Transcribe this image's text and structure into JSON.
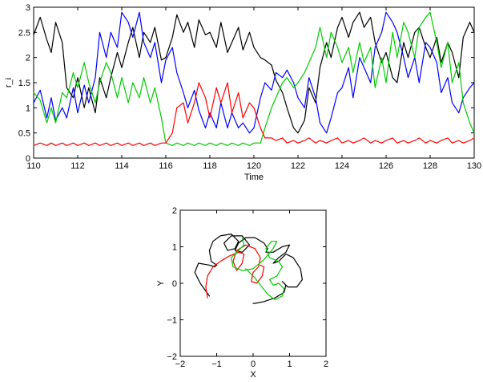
{
  "chart_data": [
    {
      "type": "line",
      "title": "",
      "xlabel": "Time",
      "ylabel": "r_i",
      "xlim": [
        110,
        130
      ],
      "ylim": [
        0,
        3
      ],
      "xticks": [
        "110",
        "112",
        "114",
        "116",
        "118",
        "120",
        "122",
        "124",
        "126",
        "128",
        "130"
      ],
      "yticks": [
        "0",
        "0.5",
        "1",
        "1.5",
        "2",
        "2.5",
        "3"
      ],
      "grid": false,
      "legend": "none",
      "series": [
        {
          "color": "#000000",
          "x": [
            110,
            110.3,
            110.6,
            110.8,
            111,
            111.3,
            111.5,
            111.8,
            112,
            112.3,
            112.5,
            112.8,
            113,
            113.3,
            113.5,
            113.8,
            114,
            114.3,
            114.5,
            114.8,
            115,
            115.3,
            115.5,
            115.8,
            116,
            116.3,
            116.5,
            116.8,
            117,
            117.3,
            117.5,
            117.8,
            118,
            118.3,
            118.5,
            118.8,
            119,
            119.3,
            119.5,
            119.8,
            120,
            120.3,
            120.5,
            120.8,
            121,
            121.3,
            121.5,
            121.8,
            122,
            122.3,
            122.5,
            122.8,
            123,
            123.3,
            123.5,
            123.8,
            124,
            124.3,
            124.5,
            124.8,
            125,
            125.3,
            125.5,
            125.8,
            126,
            126.3,
            126.5,
            126.8,
            127,
            127.3,
            127.5,
            127.8,
            128,
            128.3,
            128.5,
            128.8,
            129,
            129.3,
            129.5,
            129.8,
            130
          ],
          "y": [
            2.45,
            2.8,
            2.35,
            2.1,
            2.7,
            2.3,
            1.4,
            1.2,
            1.6,
            1.0,
            1.4,
            0.9,
            1.6,
            1.2,
            1.6,
            2.1,
            1.8,
            2.3,
            2.6,
            2.0,
            2.5,
            2.3,
            2.6,
            1.95,
            2.0,
            2.4,
            2.85,
            2.5,
            2.7,
            2.2,
            2.75,
            2.45,
            2.5,
            2.2,
            2.7,
            2.1,
            2.3,
            2.6,
            2.15,
            2.5,
            2.2,
            2.0,
            1.95,
            1.85,
            1.55,
            1.3,
            1.0,
            0.6,
            0.5,
            0.75,
            1.4,
            1.1,
            1.8,
            2.3,
            2.0,
            2.6,
            2.8,
            2.4,
            2.7,
            2.9,
            2.6,
            2.8,
            2.3,
            1.9,
            2.1,
            1.6,
            1.5,
            2.3,
            2.0,
            2.5,
            2.6,
            2.2,
            2.0,
            2.4,
            1.9,
            2.3,
            2.1,
            1.6,
            2.4,
            2.7,
            2.5
          ]
        },
        {
          "color": "#0000ff",
          "x": [
            110,
            110.3,
            110.6,
            110.8,
            111,
            111.3,
            111.5,
            111.8,
            112,
            112.3,
            112.5,
            112.8,
            113,
            113.3,
            113.5,
            113.8,
            114,
            114.3,
            114.5,
            114.8,
            115,
            115.3,
            115.5,
            115.8,
            116,
            116.3,
            116.5,
            116.8,
            117,
            117.3,
            117.5,
            117.8,
            118,
            118.3,
            118.5,
            118.8,
            119,
            119.3,
            119.5,
            119.8,
            120,
            120.3,
            120.5,
            120.8,
            121,
            121.3,
            121.5,
            121.8,
            122,
            122.3,
            122.5,
            122.8,
            123,
            123.3,
            123.5,
            123.8,
            124,
            124.3,
            124.5,
            124.8,
            125,
            125.3,
            125.5,
            125.8,
            126,
            126.3,
            126.5,
            126.8,
            127,
            127.3,
            127.5,
            127.8,
            128,
            128.3,
            128.5,
            128.8,
            129,
            129.3,
            129.5,
            129.8,
            130
          ],
          "y": [
            1.1,
            1.35,
            0.8,
            1.2,
            0.75,
            1.0,
            0.8,
            1.4,
            0.9,
            1.45,
            1.1,
            1.6,
            2.5,
            2.0,
            2.5,
            2.2,
            2.9,
            2.7,
            2.4,
            2.9,
            2.3,
            2.0,
            2.3,
            1.5,
            1.95,
            2.2,
            1.7,
            1.3,
            1.0,
            1.35,
            0.95,
            0.6,
            0.9,
            0.6,
            1.1,
            0.6,
            0.9,
            0.6,
            0.7,
            0.5,
            0.6,
            1.2,
            1.5,
            1.35,
            1.7,
            1.6,
            1.75,
            1.5,
            1.2,
            1.0,
            1.6,
            1.2,
            0.7,
            0.5,
            0.8,
            1.3,
            1.4,
            1.8,
            1.2,
            2.0,
            1.8,
            1.5,
            2.2,
            2.5,
            2.9,
            2.7,
            2.5,
            2.0,
            1.6,
            2.0,
            1.5,
            2.3,
            2.2,
            1.9,
            1.3,
            1.6,
            1.1,
            0.9,
            1.2,
            1.4,
            1.5
          ]
        },
        {
          "color": "#00cc00",
          "x": [
            110,
            110.3,
            110.6,
            110.8,
            111,
            111.3,
            111.5,
            111.8,
            112,
            112.3,
            112.5,
            112.8,
            113,
            113.3,
            113.5,
            113.8,
            114,
            114.3,
            114.5,
            114.8,
            115,
            115.3,
            115.5,
            115.8,
            116,
            116.3,
            116.5,
            116.8,
            117,
            117.3,
            117.5,
            117.8,
            118,
            118.3,
            118.5,
            118.8,
            119,
            119.3,
            119.5,
            119.8,
            120,
            120.3,
            120.5,
            120.8,
            121,
            121.3,
            121.5,
            121.8,
            122,
            122.3,
            122.5,
            122.8,
            123,
            123.3,
            123.5,
            123.8,
            124,
            124.3,
            124.5,
            124.8,
            125,
            125.3,
            125.5,
            125.8,
            126,
            126.3,
            126.5,
            126.8,
            127,
            127.3,
            127.5,
            127.8,
            128,
            128.3,
            128.5,
            128.8,
            129,
            129.3,
            129.5,
            129.8,
            130
          ],
          "y": [
            1.3,
            1.15,
            0.7,
            1.0,
            0.7,
            1.3,
            1.2,
            1.7,
            1.4,
            1.9,
            1.5,
            1.1,
            1.5,
            1.9,
            1.7,
            1.2,
            1.6,
            1.1,
            1.5,
            1.2,
            1.6,
            1.1,
            1.4,
            0.8,
            0.3,
            0.25,
            0.3,
            0.25,
            0.3,
            0.25,
            0.3,
            0.25,
            0.3,
            0.25,
            0.3,
            0.25,
            0.3,
            0.25,
            0.3,
            0.25,
            0.3,
            0.3,
            0.6,
            1.0,
            1.2,
            1.5,
            1.6,
            1.4,
            1.5,
            1.7,
            1.9,
            2.2,
            2.6,
            2.0,
            2.5,
            2.2,
            1.9,
            2.2,
            1.7,
            2.3,
            1.9,
            2.2,
            1.4,
            2.0,
            1.5,
            2.5,
            2.0,
            2.7,
            2.5,
            2.0,
            2.6,
            2.8,
            2.9,
            2.3,
            1.8,
            2.3,
            1.5,
            1.9,
            1.1,
            0.7,
            0.5
          ]
        },
        {
          "color": "#ff0000",
          "x": [
            110,
            110.3,
            110.6,
            110.8,
            111,
            111.3,
            111.5,
            111.8,
            112,
            112.3,
            112.5,
            112.8,
            113,
            113.3,
            113.5,
            113.8,
            114,
            114.3,
            114.5,
            114.8,
            115,
            115.3,
            115.5,
            115.8,
            116,
            116.3,
            116.5,
            116.8,
            117,
            117.3,
            117.5,
            117.8,
            118,
            118.3,
            118.5,
            118.8,
            119,
            119.3,
            119.5,
            119.8,
            120,
            120.3,
            120.5,
            120.8,
            121,
            121.3,
            121.5,
            121.8,
            122,
            122.3,
            122.5,
            122.8,
            123,
            123.3,
            123.5,
            123.8,
            124,
            124.3,
            124.5,
            124.8,
            125,
            125.3,
            125.5,
            125.8,
            126,
            126.3,
            126.5,
            126.8,
            127,
            127.3,
            127.5,
            127.8,
            128,
            128.3,
            128.5,
            128.8,
            129,
            129.3,
            129.5,
            129.8,
            130
          ],
          "y": [
            0.25,
            0.3,
            0.25,
            0.3,
            0.25,
            0.3,
            0.25,
            0.3,
            0.25,
            0.3,
            0.25,
            0.3,
            0.25,
            0.3,
            0.25,
            0.3,
            0.25,
            0.3,
            0.25,
            0.3,
            0.25,
            0.3,
            0.25,
            0.3,
            0.3,
            0.5,
            1.0,
            1.1,
            0.7,
            1.1,
            1.5,
            1.2,
            0.8,
            1.4,
            1.1,
            1.5,
            0.9,
            1.3,
            0.8,
            1.1,
            1.0,
            0.6,
            0.4,
            0.4,
            0.35,
            0.4,
            0.3,
            0.35,
            0.3,
            0.35,
            0.4,
            0.3,
            0.35,
            0.3,
            0.35,
            0.4,
            0.3,
            0.35,
            0.3,
            0.35,
            0.4,
            0.3,
            0.35,
            0.3,
            0.35,
            0.4,
            0.3,
            0.35,
            0.3,
            0.35,
            0.4,
            0.3,
            0.35,
            0.3,
            0.35,
            0.4,
            0.3,
            0.35,
            0.3,
            0.35,
            0.4
          ]
        }
      ]
    },
    {
      "type": "line",
      "title": "",
      "xlabel": "X",
      "ylabel": "Y",
      "xlim": [
        -2,
        2
      ],
      "ylim": [
        -2,
        2
      ],
      "xticks": [
        "−2",
        "−1",
        "0",
        "1",
        "2"
      ],
      "yticks": [
        "−2",
        "−1",
        "0",
        "1",
        "2"
      ],
      "grid": false,
      "legend": "none",
      "series": [
        {
          "color": "#000000",
          "x": [
            -1.2,
            -1.45,
            -1.6,
            -1.5,
            -1.2,
            -1.05,
            -1.0,
            -1.15,
            -1.2,
            -1.1,
            -0.9,
            -0.6,
            -0.4,
            -0.5,
            -0.7,
            -0.8,
            -0.6,
            -0.3,
            -0.1,
            -0.3,
            -0.5,
            -0.4,
            -0.2,
            0.05,
            0.3,
            0.4,
            0.35,
            0.55,
            0.8,
            1.0,
            0.9,
            0.7,
            0.55,
            0.7,
            0.9,
            1.1,
            1.3,
            1.35,
            1.2,
            0.95,
            0.8,
            0.9,
            0.85,
            0.6,
            0.3,
            0.05,
            0.0
          ],
          "y": [
            -0.35,
            0.0,
            0.3,
            0.55,
            0.5,
            0.45,
            0.5,
            0.6,
            0.9,
            1.15,
            1.3,
            1.35,
            1.15,
            0.95,
            0.9,
            1.1,
            1.3,
            1.3,
            1.05,
            0.85,
            0.9,
            1.1,
            1.25,
            1.25,
            1.1,
            0.95,
            0.85,
            0.85,
            1.0,
            1.05,
            0.85,
            0.7,
            0.55,
            0.6,
            0.8,
            0.7,
            0.4,
            0.1,
            -0.1,
            -0.1,
            0.05,
            -0.05,
            -0.25,
            -0.4,
            -0.5,
            -0.55,
            -0.55
          ]
        },
        {
          "color": "#ff0000",
          "x": [
            -1.25,
            -1.3,
            -1.25,
            -1.1,
            -0.9,
            -0.65,
            -0.4,
            -0.25,
            -0.3,
            -0.45,
            -0.55,
            -0.45,
            -0.2,
            0.05,
            0.2,
            0.15,
            0.0,
            -0.05,
            0.1,
            0.25,
            0.3,
            0.2
          ],
          "y": [
            -0.4,
            -0.1,
            0.2,
            0.45,
            0.6,
            0.75,
            0.85,
            0.8,
            0.55,
            0.35,
            0.6,
            0.9,
            1.05,
            0.95,
            0.7,
            0.45,
            0.3,
            0.05,
            0.0,
            0.2,
            0.45,
            0.5
          ]
        },
        {
          "color": "#00cc00",
          "x": [
            -0.3,
            -0.25,
            -0.4,
            -0.6,
            -0.55,
            -0.3,
            0.0,
            0.3,
            0.55,
            0.65,
            0.5,
            0.35,
            0.45,
            0.7,
            0.8,
            0.65,
            0.45,
            0.55,
            0.7,
            0.85,
            0.8,
            0.6,
            0.4,
            0.2,
            0.05,
            -0.1,
            -0.2
          ],
          "y": [
            1.25,
            1.05,
            0.9,
            0.7,
            0.45,
            0.35,
            0.4,
            0.65,
            0.95,
            1.15,
            1.15,
            0.95,
            0.7,
            0.6,
            0.45,
            0.2,
            0.1,
            -0.05,
            0.0,
            -0.15,
            -0.35,
            -0.45,
            -0.3,
            -0.05,
            0.15,
            0.3,
            0.4
          ]
        }
      ]
    }
  ]
}
